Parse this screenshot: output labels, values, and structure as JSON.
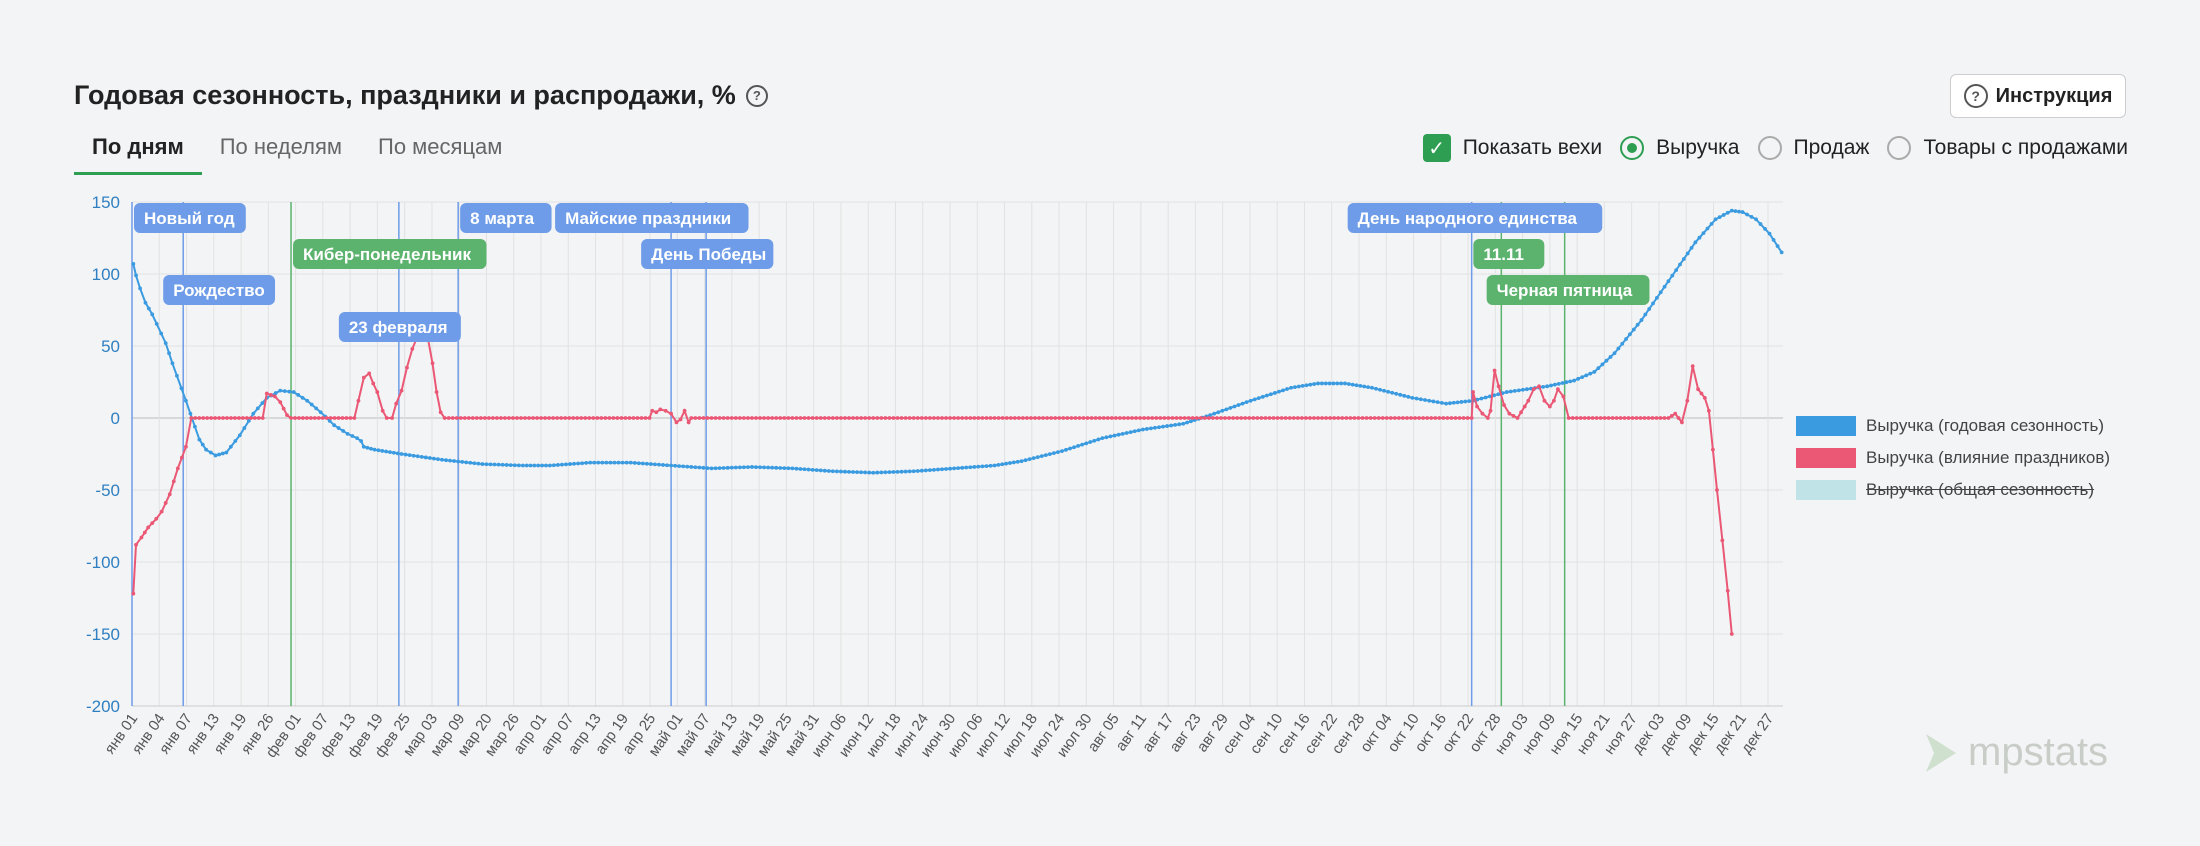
{
  "title": "Годовая сезонность, праздники и распродажи, %",
  "tabs": [
    {
      "label": "По дням"
    },
    {
      "label": "По неделям"
    },
    {
      "label": "По месяцам"
    }
  ],
  "instruction_label": "Инструкция",
  "options": {
    "show_milestones": "Показать вехи",
    "revenue": "Выручка",
    "sales": "Продаж",
    "goods_with_sales": "Товары с продажами"
  },
  "logo_text": "mpstats",
  "chart_data": {
    "type": "line",
    "ylim": [
      -200,
      150
    ],
    "yticks": [
      150,
      100,
      50,
      0,
      -50,
      -100,
      -150,
      -200
    ],
    "x_tick_labels": [
      "янв 01",
      "янв 04",
      "янв 07",
      "янв 13",
      "янв 19",
      "янв 26",
      "фев 01",
      "фев 07",
      "фев 13",
      "фев 19",
      "фев 25",
      "мар 03",
      "мар 09",
      "мар 20",
      "мар 26",
      "апр 01",
      "апр 07",
      "апр 13",
      "апр 19",
      "апр 25",
      "май 01",
      "май 07",
      "май 13",
      "май 19",
      "май 25",
      "май 31",
      "июн 06",
      "июн 12",
      "июн 18",
      "июн 24",
      "июн 30",
      "июл 06",
      "июл 12",
      "июл 18",
      "июл 24",
      "июл 30",
      "авг 05",
      "авг 11",
      "авг 17",
      "авг 23",
      "авг 29",
      "сен 04",
      "сен 10",
      "сен 16",
      "сен 22",
      "сен 28",
      "окт 04",
      "окт 10",
      "окт 16",
      "окт 22",
      "окт 28",
      "ноя 03",
      "ноя 09",
      "ноя 15",
      "ноя 21",
      "ноя 27",
      "дек 03",
      "дек 09",
      "дек 15",
      "дек 21",
      "дек 27"
    ],
    "series": [
      {
        "name": "Выручка (годовая сезонность)",
        "color": "#3b9be0",
        "visible": true,
        "points": [
          [
            1,
            107
          ],
          [
            3,
            99
          ],
          [
            6,
            90
          ],
          [
            10,
            80
          ],
          [
            15,
            72
          ],
          [
            25,
            52
          ],
          [
            30,
            38
          ],
          [
            40,
            12
          ],
          [
            50,
            -15
          ],
          [
            55,
            -22
          ],
          [
            62,
            -26
          ],
          [
            70,
            -24
          ],
          [
            80,
            -12
          ],
          [
            90,
            3
          ],
          [
            100,
            14
          ],
          [
            110,
            19
          ],
          [
            120,
            18
          ],
          [
            130,
            12
          ],
          [
            140,
            4
          ],
          [
            150,
            -5
          ],
          [
            160,
            -11
          ],
          [
            167,
            -14
          ],
          [
            170,
            -16
          ],
          [
            172,
            -20
          ],
          [
            180,
            -22
          ],
          [
            200,
            -25
          ],
          [
            230,
            -29
          ],
          [
            260,
            -32
          ],
          [
            290,
            -33
          ],
          [
            310,
            -33
          ],
          [
            340,
            -31
          ],
          [
            370,
            -31
          ],
          [
            400,
            -33
          ],
          [
            430,
            -35
          ],
          [
            460,
            -34
          ],
          [
            490,
            -35
          ],
          [
            520,
            -37
          ],
          [
            550,
            -38
          ],
          [
            580,
            -37
          ],
          [
            610,
            -35
          ],
          [
            640,
            -33
          ],
          [
            660,
            -30
          ],
          [
            690,
            -23
          ],
          [
            720,
            -14
          ],
          [
            750,
            -8
          ],
          [
            780,
            -4
          ],
          [
            800,
            2
          ],
          [
            830,
            12
          ],
          [
            860,
            21
          ],
          [
            880,
            24
          ],
          [
            900,
            24
          ],
          [
            920,
            21
          ],
          [
            950,
            14
          ],
          [
            975,
            10
          ],
          [
            995,
            12
          ],
          [
            1020,
            18
          ],
          [
            1050,
            22
          ],
          [
            1070,
            26
          ],
          [
            1085,
            32
          ],
          [
            1100,
            45
          ],
          [
            1120,
            68
          ],
          [
            1140,
            95
          ],
          [
            1160,
            122
          ],
          [
            1175,
            138
          ],
          [
            1187,
            144
          ],
          [
            1195,
            143
          ],
          [
            1205,
            138
          ],
          [
            1215,
            128
          ],
          [
            1224,
            115
          ]
        ]
      },
      {
        "name": "Выручка (влияние праздников)",
        "color": "#ea5875",
        "visible": true,
        "points": [
          [
            1,
            -122
          ],
          [
            3,
            -88
          ],
          [
            7,
            -83
          ],
          [
            12,
            -76
          ],
          [
            18,
            -70
          ],
          [
            22,
            -65
          ],
          [
            28,
            -53
          ],
          [
            34,
            -35
          ],
          [
            40,
            -20
          ],
          [
            44,
            0
          ],
          [
            97,
            0
          ],
          [
            100,
            17
          ],
          [
            103,
            16
          ],
          [
            106,
            15
          ],
          [
            110,
            11
          ],
          [
            115,
            2
          ],
          [
            118,
            0
          ],
          [
            165,
            0
          ],
          [
            168,
            12
          ],
          [
            172,
            28
          ],
          [
            176,
            31
          ],
          [
            179,
            24
          ],
          [
            182,
            18
          ],
          [
            186,
            5
          ],
          [
            189,
            0
          ],
          [
            193,
            0
          ],
          [
            196,
            10
          ],
          [
            200,
            19
          ],
          [
            204,
            35
          ],
          [
            208,
            48
          ],
          [
            212,
            57
          ],
          [
            215,
            61
          ],
          [
            219,
            58
          ],
          [
            223,
            38
          ],
          [
            226,
            18
          ],
          [
            229,
            4
          ],
          [
            232,
            0
          ],
          [
            384,
            0
          ],
          [
            386,
            5
          ],
          [
            389,
            4
          ],
          [
            392,
            6
          ],
          [
            396,
            5
          ],
          [
            400,
            3
          ],
          [
            404,
            -3
          ],
          [
            407,
            -1
          ],
          [
            410,
            5
          ],
          [
            413,
            -3
          ],
          [
            415,
            0
          ],
          [
            994,
            0
          ],
          [
            995,
            18
          ],
          [
            998,
            8
          ],
          [
            1002,
            3
          ],
          [
            1006,
            0
          ],
          [
            1008,
            5
          ],
          [
            1011,
            33
          ],
          [
            1014,
            22
          ],
          [
            1018,
            9
          ],
          [
            1022,
            3
          ],
          [
            1028,
            0
          ],
          [
            1036,
            12
          ],
          [
            1040,
            20
          ],
          [
            1044,
            22
          ],
          [
            1048,
            12
          ],
          [
            1052,
            8
          ],
          [
            1055,
            12
          ],
          [
            1058,
            20
          ],
          [
            1062,
            15
          ],
          [
            1066,
            0
          ],
          [
            1140,
            0
          ],
          [
            1145,
            3
          ],
          [
            1150,
            -3
          ],
          [
            1154,
            12
          ],
          [
            1158,
            36
          ],
          [
            1162,
            20
          ],
          [
            1167,
            14
          ],
          [
            1170,
            5
          ],
          [
            1173,
            -22
          ],
          [
            1176,
            -50
          ],
          [
            1180,
            -85
          ],
          [
            1184,
            -120
          ],
          [
            1187,
            -150
          ]
        ]
      },
      {
        "name": "Выручка (общая сезонность)",
        "color": "#bfe3e6",
        "visible": false,
        "points": []
      }
    ],
    "milestones": [
      {
        "label": "Новый год",
        "color": "#6e9ce8",
        "x": 0
      },
      {
        "label": "Рождество",
        "color": "#6e9ce8",
        "x": 38
      },
      {
        "label": "Кибер-понедельник",
        "color": "#5cb36d",
        "x": 118
      },
      {
        "label": "23 февраля",
        "color": "#6e9ce8",
        "x": 198
      },
      {
        "label": "8 марта",
        "color": "#6e9ce8",
        "x": 242
      },
      {
        "label": "Майские праздники",
        "color": "#6e9ce8",
        "x": 400
      },
      {
        "label": "День Победы",
        "color": "#6e9ce8",
        "x": 426
      },
      {
        "label": "День народного единства",
        "color": "#6e9ce8",
        "x": 994
      },
      {
        "label": "11.11",
        "color": "#5cb36d",
        "x": 1016
      },
      {
        "label": "Черная пятница",
        "color": "#5cb36d",
        "x": 1063
      }
    ]
  }
}
